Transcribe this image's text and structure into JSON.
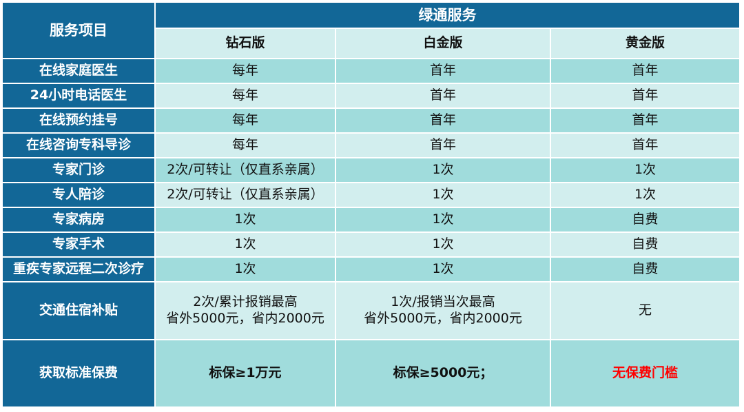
{
  "header": {
    "category_label": "服务项目",
    "group_label": "绿通服务",
    "plans": [
      "钻石版",
      "白金版",
      "黄金版"
    ]
  },
  "rows": [
    {
      "label": "在线家庭医生",
      "values": [
        "每年",
        "首年",
        "首年"
      ]
    },
    {
      "label": "24小时电话医生",
      "values": [
        "每年",
        "首年",
        "首年"
      ]
    },
    {
      "label": "在线预约挂号",
      "values": [
        "每年",
        "首年",
        "首年"
      ]
    },
    {
      "label": "在线咨询专科导诊",
      "values": [
        "每年",
        "首年",
        "首年"
      ]
    },
    {
      "label": "专家门诊",
      "values": [
        "2次/可转让（仅直系亲属）",
        "1次",
        "1次"
      ]
    },
    {
      "label": "专人陪诊",
      "values": [
        "2次/可转让（仅直系亲属）",
        "1次",
        "1次"
      ]
    },
    {
      "label": "专家病房",
      "values": [
        "1次",
        "1次",
        "自费"
      ]
    },
    {
      "label": "专家手术",
      "values": [
        "1次",
        "1次",
        "自费"
      ]
    },
    {
      "label": "重疾专家远程二次诊疗",
      "values": [
        "1次",
        "1次",
        "自费"
      ]
    }
  ],
  "transport": {
    "label": "交通住宿补贴",
    "diamond": [
      "2次/累计报销最高",
      "省外5000元，省内2000元"
    ],
    "platinum": [
      "1次/报销当次最高",
      "省外5000元，省内2000元"
    ],
    "gold": "无"
  },
  "premium": {
    "label": "获取标准保费",
    "values": [
      "标保≥1万元",
      "标保≥5000元；",
      "无保费门槛"
    ],
    "highlight_color": "#ff0000"
  },
  "colors": {
    "header_bg": "#126797",
    "row_light": "#d2eeee",
    "row_dark": "#a0dcdc"
  }
}
